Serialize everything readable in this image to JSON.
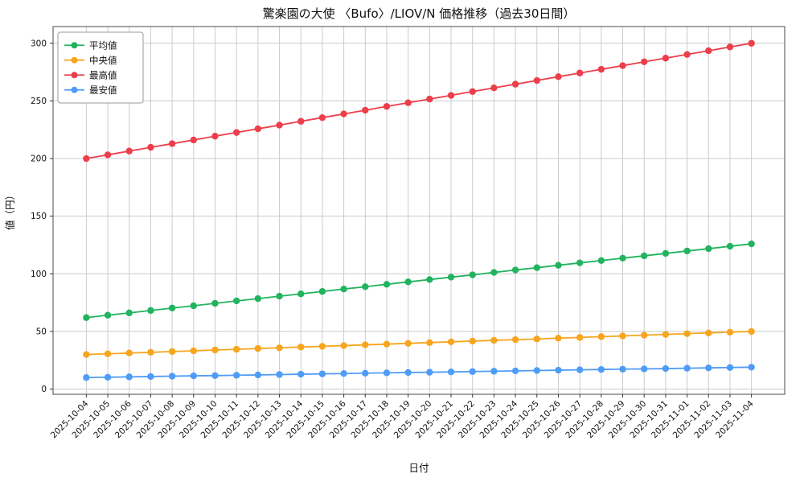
{
  "chart_data": {
    "type": "line",
    "title": "驚楽園の大使 〈Bufo〉/LIOV/N 価格推移（過去30日間）",
    "xlabel": "日付",
    "ylabel": "値（円）",
    "grid": true,
    "legend_position": "upper-left",
    "ylim": [
      -4.5,
      314.5
    ],
    "yticks": [
      0,
      50,
      100,
      150,
      200,
      250,
      300
    ],
    "x": [
      "2025-10-04",
      "2025-10-05",
      "2025-10-06",
      "2025-10-07",
      "2025-10-08",
      "2025-10-09",
      "2025-10-10",
      "2025-10-11",
      "2025-10-12",
      "2025-10-13",
      "2025-10-14",
      "2025-10-15",
      "2025-10-16",
      "2025-10-17",
      "2025-10-18",
      "2025-10-19",
      "2025-10-20",
      "2025-10-21",
      "2025-10-22",
      "2025-10-23",
      "2025-10-24",
      "2025-10-25",
      "2025-10-26",
      "2025-10-27",
      "2025-10-28",
      "2025-10-29",
      "2025-10-30",
      "2025-10-31",
      "2025-11-01",
      "2025-11-02",
      "2025-11-03",
      "2025-11-04"
    ],
    "series": [
      {
        "key": "mean",
        "name": "平均値",
        "color": "#22b35f",
        "values": [
          62.0,
          64.1,
          66.1,
          68.2,
          70.3,
          72.3,
          74.4,
          76.5,
          78.5,
          80.6,
          82.6,
          84.7,
          86.8,
          88.8,
          90.9,
          93.0,
          95.0,
          97.1,
          99.1,
          101.2,
          103.3,
          105.3,
          107.4,
          109.5,
          111.5,
          113.6,
          115.6,
          117.7,
          119.8,
          121.8,
          123.9,
          126.0
        ]
      },
      {
        "key": "median",
        "name": "中央値",
        "color": "#f7a51d",
        "values": [
          30.0,
          30.6,
          31.3,
          31.9,
          32.6,
          33.2,
          33.9,
          34.5,
          35.2,
          35.8,
          36.5,
          37.1,
          37.7,
          38.4,
          39.0,
          39.7,
          40.3,
          41.0,
          41.6,
          42.3,
          42.9,
          43.5,
          44.2,
          44.8,
          45.5,
          46.1,
          46.8,
          47.4,
          48.1,
          48.7,
          49.4,
          50.0
        ]
      },
      {
        "key": "max",
        "name": "最高値",
        "color": "#ed3e4b",
        "values": [
          200.0,
          203.2,
          206.5,
          209.7,
          212.9,
          216.1,
          219.4,
          222.6,
          225.8,
          229.0,
          232.3,
          235.5,
          238.7,
          241.9,
          245.2,
          248.4,
          251.6,
          254.8,
          258.1,
          261.3,
          264.5,
          267.7,
          271.0,
          274.2,
          277.4,
          280.6,
          283.9,
          287.1,
          290.3,
          293.5,
          296.8,
          300.0
        ]
      },
      {
        "key": "min",
        "name": "最安値",
        "color": "#4f9cf7",
        "values": [
          10.0,
          10.3,
          10.6,
          10.9,
          11.2,
          11.5,
          11.7,
          12.0,
          12.3,
          12.6,
          12.9,
          13.2,
          13.5,
          13.8,
          14.1,
          14.4,
          14.6,
          14.9,
          15.2,
          15.5,
          15.8,
          16.1,
          16.4,
          16.7,
          17.0,
          17.3,
          17.5,
          17.8,
          18.1,
          18.4,
          18.7,
          19.0
        ]
      }
    ],
    "colors": {
      "grid": "#cccccc",
      "spine": "#4a4a4a",
      "tick": "#333333"
    }
  }
}
